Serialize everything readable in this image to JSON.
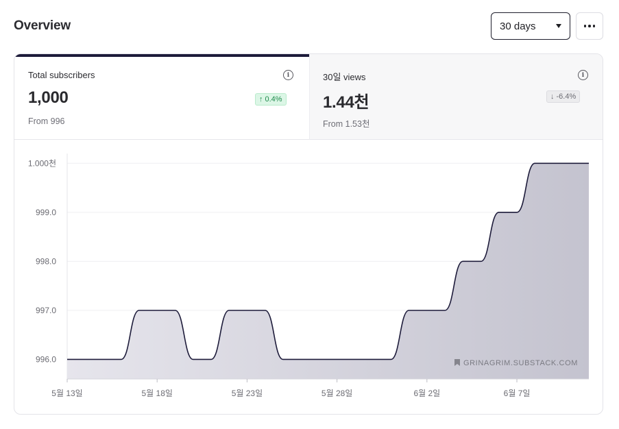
{
  "header": {
    "title": "Overview",
    "range_label": "30 days"
  },
  "stats": [
    {
      "label": "Total subscribers",
      "value": "1,000",
      "change": "0.4%",
      "direction": "up",
      "from": "From 996"
    },
    {
      "label": "30일 views",
      "value": "1.44천",
      "change": "-6.4%",
      "direction": "down",
      "from": "From 1.53천"
    }
  ],
  "colors": {
    "accent": "#1d1b3a",
    "fill": "#c9c8d4",
    "up": "#1f8a4c"
  },
  "chart_data": {
    "type": "area",
    "ylabel": "",
    "xlabel": "",
    "ylim": [
      995.6,
      1000.2
    ],
    "yticks": [
      996.0,
      997.0,
      998.0,
      999.0,
      1000.0
    ],
    "ytick_labels": [
      "996.0",
      "997.0",
      "998.0",
      "999.0",
      "1.000천"
    ],
    "xtick_labels": [
      "5월 13일",
      "5월 18일",
      "5월 23일",
      "5월 28일",
      "6월 2일",
      "6월 7일"
    ],
    "xtick_index": [
      0,
      5,
      10,
      15,
      20,
      25
    ],
    "x": [
      "5월 13일",
      "5월 14일",
      "5월 15일",
      "5월 16일",
      "5월 17일",
      "5월 18일",
      "5월 19일",
      "5월 20일",
      "5월 21일",
      "5월 22일",
      "5월 23일",
      "5월 24일",
      "5월 25일",
      "5월 26일",
      "5월 27일",
      "5월 28일",
      "5월 29일",
      "5월 30일",
      "5월 31일",
      "6월 1일",
      "6월 2일",
      "6월 3일",
      "6월 4일",
      "6월 5일",
      "6월 6일",
      "6월 7일",
      "6월 8일",
      "6월 9일",
      "6월 10일",
      "6월 11일"
    ],
    "values": [
      996,
      996,
      996,
      996,
      997,
      997,
      997,
      996,
      996,
      997,
      997,
      997,
      996,
      996,
      996,
      996,
      996,
      996,
      996,
      997,
      997,
      997,
      998,
      998,
      999,
      999,
      1000,
      1000,
      1000,
      1000
    ],
    "watermark": "GRINAGRIM.SUBSTACK.COM"
  }
}
